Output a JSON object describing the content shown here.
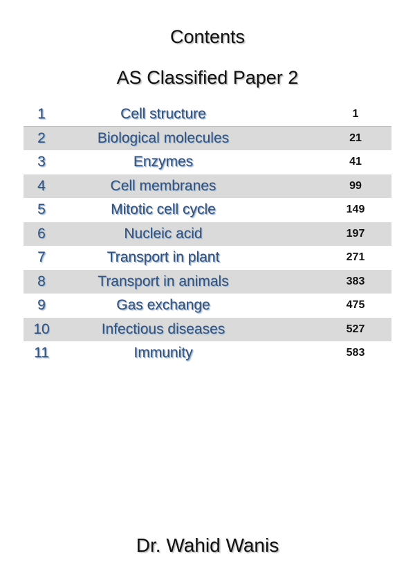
{
  "header": {
    "title": "Contents",
    "subtitle": "AS Classified Paper 2"
  },
  "toc": [
    {
      "num": "1",
      "topic": "Cell structure",
      "page": "1"
    },
    {
      "num": "2",
      "topic": "Biological molecules",
      "page": "21"
    },
    {
      "num": "3",
      "topic": "Enzymes",
      "page": "41"
    },
    {
      "num": "4",
      "topic": "Cell membranes",
      "page": "99"
    },
    {
      "num": "5",
      "topic": "Mitotic cell cycle",
      "page": "149"
    },
    {
      "num": "6",
      "topic": "Nucleic acid",
      "page": "197"
    },
    {
      "num": "7",
      "topic": "Transport in plant",
      "page": "271"
    },
    {
      "num": "8",
      "topic": "Transport in animals",
      "page": "383"
    },
    {
      "num": "9",
      "topic": "Gas exchange",
      "page": "475"
    },
    {
      "num": "10",
      "topic": "Infectious diseases",
      "page": "527"
    },
    {
      "num": "11",
      "topic": "Immunity",
      "page": "583"
    }
  ],
  "footer": {
    "author": "Dr. Wahid Wanis"
  },
  "colors": {
    "row_shade": "#dadada",
    "topic_text": "#3d4f6d",
    "topic_glow": "#8aaed6"
  }
}
